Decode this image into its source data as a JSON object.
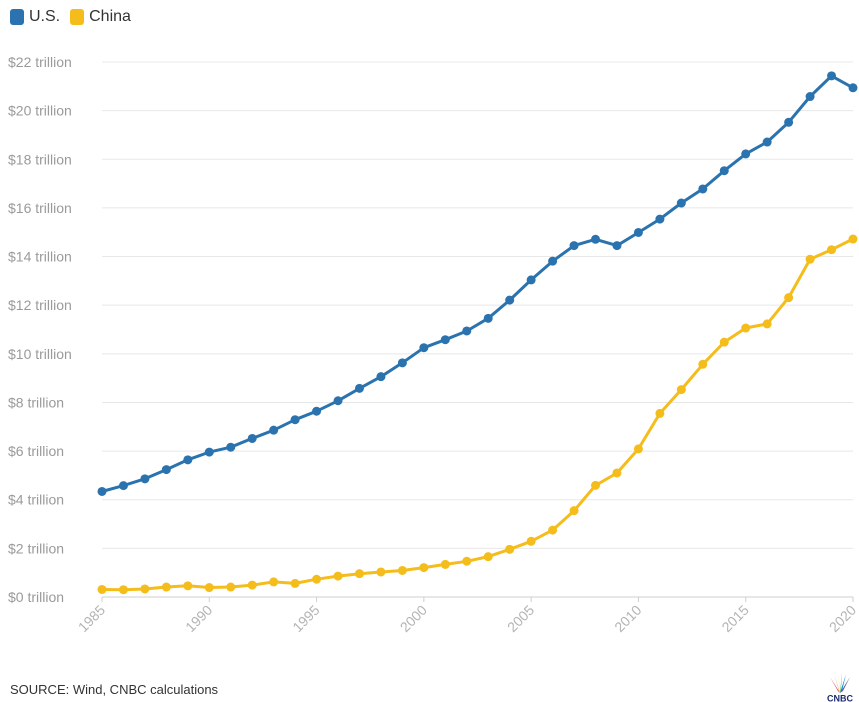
{
  "chart_data": {
    "type": "line",
    "title": "",
    "xlabel": "",
    "ylabel": "",
    "x": [
      1985,
      1986,
      1987,
      1988,
      1989,
      1990,
      1991,
      1992,
      1993,
      1994,
      1995,
      1996,
      1997,
      1998,
      1999,
      2000,
      2001,
      2002,
      2003,
      2004,
      2005,
      2006,
      2007,
      2008,
      2009,
      2010,
      2011,
      2012,
      2013,
      2014,
      2015,
      2016,
      2017,
      2018,
      2019,
      2020
    ],
    "xlim": [
      1985,
      2020
    ],
    "ylim": [
      0,
      22
    ],
    "y_unit": "trillion USD",
    "yticks": [
      0,
      2,
      4,
      6,
      8,
      10,
      12,
      14,
      16,
      18,
      20,
      22
    ],
    "ytick_labels": [
      "$0 trillion",
      "$2 trillion",
      "$4 trillion",
      "$6 trillion",
      "$8 trillion",
      "$10 trillion",
      "$12 trillion",
      "$14 trillion",
      "$16 trillion",
      "$18 trillion",
      "$20 trillion",
      "$22 trillion"
    ],
    "xticks": [
      1985,
      1990,
      1995,
      2000,
      2005,
      2010,
      2015,
      2020
    ],
    "xtick_labels": [
      "1985",
      "1990",
      "1995",
      "2000",
      "2005",
      "2010",
      "2015",
      "2020"
    ],
    "grid": "horizontal",
    "legend_position": "top-left",
    "series": [
      {
        "name": "U.S.",
        "color": "#2b73ae",
        "values": [
          4.34,
          4.58,
          4.86,
          5.24,
          5.64,
          5.96,
          6.16,
          6.52,
          6.86,
          7.29,
          7.64,
          8.07,
          8.58,
          9.06,
          9.63,
          10.25,
          10.58,
          10.94,
          11.46,
          12.21,
          13.04,
          13.81,
          14.45,
          14.71,
          14.45,
          14.99,
          15.54,
          16.2,
          16.78,
          17.53,
          18.22,
          18.71,
          19.52,
          20.58,
          21.43,
          20.94
        ]
      },
      {
        "name": "China",
        "color": "#f4bd1b",
        "values": [
          0.31,
          0.3,
          0.33,
          0.41,
          0.46,
          0.39,
          0.41,
          0.49,
          0.62,
          0.56,
          0.73,
          0.86,
          0.96,
          1.03,
          1.09,
          1.21,
          1.34,
          1.47,
          1.66,
          1.96,
          2.29,
          2.75,
          3.55,
          4.59,
          5.1,
          6.09,
          7.55,
          8.53,
          9.57,
          10.48,
          11.06,
          11.23,
          12.31,
          13.89,
          14.28,
          14.72
        ]
      }
    ]
  },
  "legend": {
    "items": [
      {
        "label": "U.S.",
        "color": "#2b73ae"
      },
      {
        "label": "China",
        "color": "#f4bd1b"
      }
    ]
  },
  "source": "SOURCE: Wind, CNBC calculations",
  "logo": {
    "name": "cnbc-peacock-logo",
    "text": "CNBC"
  }
}
